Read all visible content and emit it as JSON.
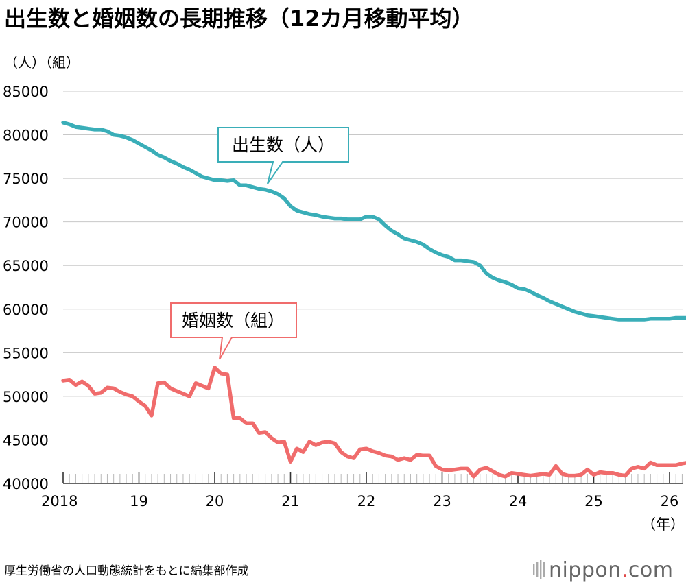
{
  "chart_data": {
    "type": "line",
    "title": "出生数と婚姻数の長期推移（12カ月移動平均）",
    "unit_label": "（人）（組）",
    "x_unit_label": "（年）",
    "y_ticks": [
      "85000",
      "80000",
      "75000",
      "70000",
      "65000",
      "60000",
      "55000",
      "50000",
      "45000",
      "40000"
    ],
    "ylim": [
      40000,
      85000
    ],
    "x_tick_labels": [
      "2018",
      "19",
      "20",
      "21",
      "22",
      "23",
      "24",
      "25",
      "26"
    ],
    "grid": true,
    "series": [
      {
        "name": "出生数（人）",
        "color": "#3aaeb8",
        "x": [
          "2018-01",
          "2018-02",
          "2018-03",
          "2018-04",
          "2018-05",
          "2018-06",
          "2018-07",
          "2018-08",
          "2018-09",
          "2018-10",
          "2018-11",
          "2018-12",
          "2019-01",
          "2019-02",
          "2019-03",
          "2019-04",
          "2019-05",
          "2019-06",
          "2019-07",
          "2019-08",
          "2019-09",
          "2019-10",
          "2019-11",
          "2019-12",
          "2020-01",
          "2020-02",
          "2020-03",
          "2020-04",
          "2020-05",
          "2020-06",
          "2020-07",
          "2020-08",
          "2020-09",
          "2020-10",
          "2020-11",
          "2020-12",
          "2021-01",
          "2021-02",
          "2021-03",
          "2021-04",
          "2021-05",
          "2021-06",
          "2021-07",
          "2021-08",
          "2021-09",
          "2021-10",
          "2021-11",
          "2021-12",
          "2022-01",
          "2022-02",
          "2022-03",
          "2022-04",
          "2022-05",
          "2022-06",
          "2022-07",
          "2022-08",
          "2022-09",
          "2022-10",
          "2022-11",
          "2022-12",
          "2023-01",
          "2023-02",
          "2023-03",
          "2023-04",
          "2023-05",
          "2023-06",
          "2023-07",
          "2023-08",
          "2023-09",
          "2023-10",
          "2023-11",
          "2023-12",
          "2024-01",
          "2024-02",
          "2024-03",
          "2024-04",
          "2024-05",
          "2024-06",
          "2024-07",
          "2024-08",
          "2024-09",
          "2024-10",
          "2024-11",
          "2024-12",
          "2025-01",
          "2025-02",
          "2025-03",
          "2025-04",
          "2025-05",
          "2025-06",
          "2025-07",
          "2025-08",
          "2025-09",
          "2025-10",
          "2025-11",
          "2025-12",
          "2026-01",
          "2026-02",
          "2026-03",
          "2026-04",
          "2026-05"
        ],
        "values": [
          81400,
          81200,
          80900,
          80800,
          80700,
          80600,
          80600,
          80400,
          80000,
          79900,
          79700,
          79400,
          79000,
          78600,
          78200,
          77700,
          77400,
          77000,
          76700,
          76300,
          76000,
          75600,
          75200,
          75000,
          74800,
          74800,
          74700,
          74800,
          74200,
          74200,
          74000,
          73800,
          73700,
          73500,
          73200,
          72700,
          71800,
          71300,
          71100,
          70900,
          70800,
          70600,
          70500,
          70400,
          70400,
          70300,
          70300,
          70300,
          70600,
          70600,
          70300,
          69600,
          69000,
          68600,
          68100,
          67900,
          67700,
          67400,
          66900,
          66500,
          66200,
          66000,
          65600,
          65600,
          65500,
          65400,
          65000,
          64100,
          63600,
          63300,
          63100,
          62800,
          62400,
          62300,
          62000,
          61600,
          61300,
          60900,
          60600,
          60300,
          60000,
          59700,
          59500,
          59300,
          59200,
          59100,
          59000,
          58900,
          58800,
          58800,
          58800,
          58800,
          58800,
          58900,
          58900,
          58900,
          58900,
          59000,
          59000,
          59000,
          59100
        ]
      },
      {
        "name": "婚姻数（組）",
        "color": "#f06c6c",
        "x": [
          "2018-01",
          "2018-02",
          "2018-03",
          "2018-04",
          "2018-05",
          "2018-06",
          "2018-07",
          "2018-08",
          "2018-09",
          "2018-10",
          "2018-11",
          "2018-12",
          "2019-01",
          "2019-02",
          "2019-03",
          "2019-04",
          "2019-05",
          "2019-06",
          "2019-07",
          "2019-08",
          "2019-09",
          "2019-10",
          "2019-11",
          "2019-12",
          "2020-01",
          "2020-02",
          "2020-03",
          "2020-04",
          "2020-05",
          "2020-06",
          "2020-07",
          "2020-08",
          "2020-09",
          "2020-10",
          "2020-11",
          "2020-12",
          "2021-01",
          "2021-02",
          "2021-03",
          "2021-04",
          "2021-05",
          "2021-06",
          "2021-07",
          "2021-08",
          "2021-09",
          "2021-10",
          "2021-11",
          "2021-12",
          "2022-01",
          "2022-02",
          "2022-03",
          "2022-04",
          "2022-05",
          "2022-06",
          "2022-07",
          "2022-08",
          "2022-09",
          "2022-10",
          "2022-11",
          "2022-12",
          "2023-01",
          "2023-02",
          "2023-03",
          "2023-04",
          "2023-05",
          "2023-06",
          "2023-07",
          "2023-08",
          "2023-09",
          "2023-10",
          "2023-11",
          "2023-12",
          "2024-01",
          "2024-02",
          "2024-03",
          "2024-04",
          "2024-05",
          "2024-06",
          "2024-07",
          "2024-08",
          "2024-09",
          "2024-10",
          "2024-11",
          "2024-12",
          "2025-01",
          "2025-02",
          "2025-03",
          "2025-04",
          "2025-05",
          "2025-06",
          "2025-07",
          "2025-08",
          "2025-09",
          "2025-10",
          "2025-11",
          "2025-12",
          "2026-01",
          "2026-02",
          "2026-03",
          "2026-04",
          "2026-05"
        ],
        "values": [
          51800,
          51900,
          51300,
          51700,
          51200,
          50300,
          50400,
          51000,
          50900,
          50500,
          50200,
          50000,
          49400,
          48900,
          47800,
          51500,
          51600,
          50900,
          50600,
          50300,
          50000,
          51500,
          51200,
          50900,
          53300,
          52600,
          52500,
          47500,
          47500,
          46900,
          46900,
          45800,
          45900,
          45200,
          44700,
          44800,
          42500,
          44000,
          43600,
          44800,
          44400,
          44700,
          44800,
          44600,
          43600,
          43100,
          42900,
          43900,
          44000,
          43700,
          43500,
          43200,
          43100,
          42700,
          42900,
          42700,
          43300,
          43200,
          43200,
          42000,
          41600,
          41500,
          41600,
          41700,
          41700,
          40800,
          41600,
          41800,
          41400,
          41000,
          40800,
          41200,
          41100,
          41000,
          40900,
          41000,
          41100,
          41000,
          42000,
          41100,
          40900,
          40900,
          41000,
          41600,
          41000,
          41300,
          41200,
          41200,
          41000,
          40900,
          41700,
          41900,
          41700,
          42400,
          42100,
          42100,
          42100,
          42100,
          42300,
          42400,
          42300
        ]
      }
    ],
    "callouts": [
      {
        "text": "出生数（人）",
        "series": 0
      },
      {
        "text": "婚姻数（組）",
        "series": 1
      }
    ]
  },
  "footer": {
    "source": "厚生労働省の人口動態統計をもとに編集部作成",
    "logo_main": "nippon",
    "logo_dot": ".",
    "logo_com": "com"
  }
}
